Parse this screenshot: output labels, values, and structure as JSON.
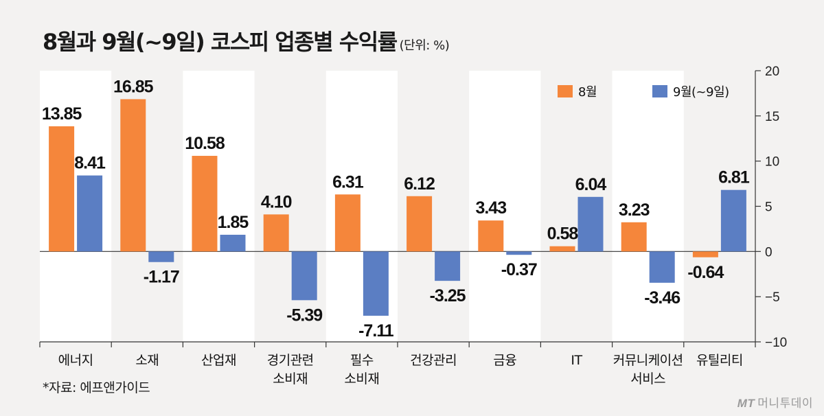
{
  "title": "8월과 9월(~9일) 코스피 업종별 수익률",
  "unit": "(단위: %)",
  "source": "*자료: 에프앤가이드",
  "brand": {
    "logo": "MT",
    "name": "머니투데이"
  },
  "colors": {
    "aug": "#f5863b",
    "sep": "#5b7ec3",
    "panel": "#ffffff"
  },
  "chart_data": {
    "type": "bar",
    "title": "8월과 9월(~9일) 코스피 업종별 수익률",
    "ylabel": "",
    "xlabel": "",
    "ylim": [
      -10,
      20
    ],
    "yticks": [
      20,
      15,
      10,
      5,
      0,
      -5,
      -10
    ],
    "ytick_labels": [
      "20",
      "15",
      "10",
      "5",
      "0",
      "−5",
      "−10"
    ],
    "legend_position": "top-right",
    "grid": false,
    "categories": [
      [
        "에너지"
      ],
      [
        "소재"
      ],
      [
        "산업재"
      ],
      [
        "경기관련",
        "소비재"
      ],
      [
        "필수",
        "소비재"
      ],
      [
        "건강관리"
      ],
      [
        "금융"
      ],
      [
        "IT"
      ],
      [
        "커뮤니케이션",
        "서비스"
      ],
      [
        "유틸리티"
      ]
    ],
    "series": [
      {
        "name": "8월",
        "values": [
          13.85,
          16.85,
          10.58,
          4.1,
          6.31,
          6.12,
          3.43,
          0.58,
          3.23,
          -0.64
        ],
        "labels": [
          "13.85",
          "16.85",
          "10.58",
          "4.10",
          "6.31",
          "6.12",
          "3.43",
          "0.58",
          "3.23",
          "-0.64"
        ]
      },
      {
        "name": "9월(~9일)",
        "values": [
          8.41,
          -1.17,
          1.85,
          -5.39,
          -7.11,
          -3.25,
          -0.37,
          6.04,
          -3.46,
          6.81
        ],
        "labels": [
          "8.41",
          "-1.17",
          "1.85",
          "-5.39",
          "-7.11",
          "-3.25",
          "-0.37",
          "6.04",
          "-3.46",
          "6.81"
        ]
      }
    ]
  }
}
